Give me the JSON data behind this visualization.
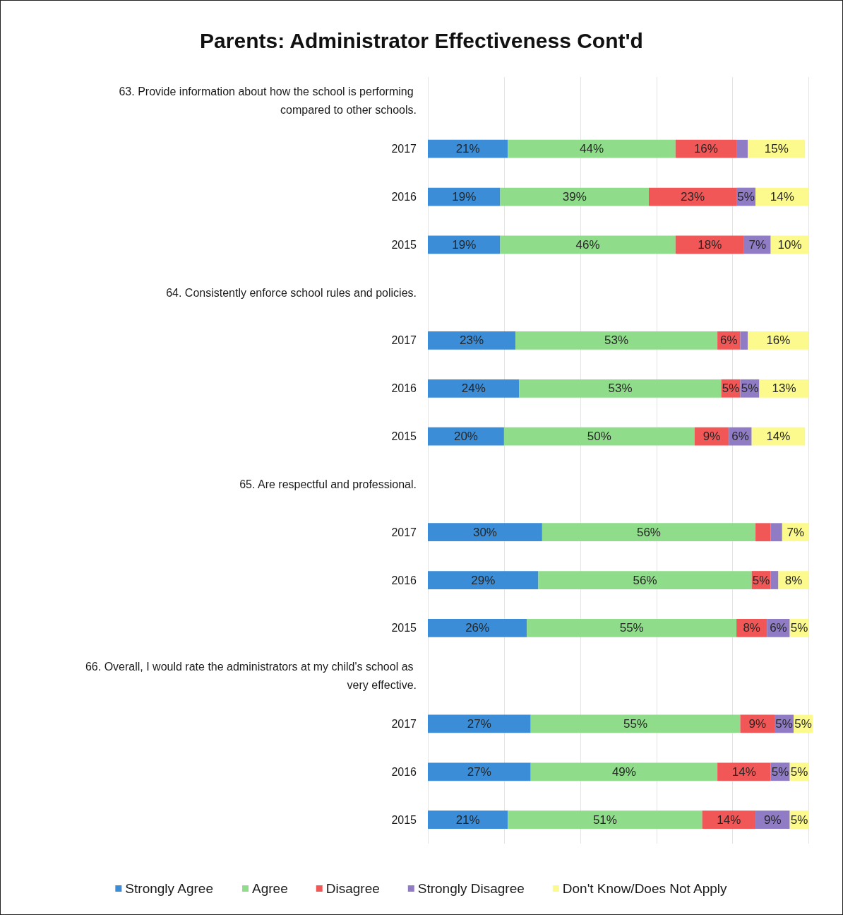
{
  "chart_data": {
    "type": "bar",
    "title": "Parents: Administrator Effectiveness Cont'd",
    "orientation": "horizontal",
    "stacked": true,
    "categories": [
      "63. Provide information about how the school is performing compared to other schools.",
      "2017",
      "2016",
      "2015",
      "64. Consistently enforce school rules and policies.",
      "2017",
      "2016",
      "2015",
      "65. Are respectful and professional.",
      "2017",
      "2016",
      "2015",
      "66. Overall, I would rate the administrators at my child's school as very effective.",
      "2017",
      "2016",
      "2015"
    ],
    "series": [
      {
        "name": "Strongly Agree",
        "color": "#3a8dd6",
        "values": [
          null,
          21,
          19,
          19,
          null,
          23,
          24,
          20,
          null,
          30,
          29,
          26,
          null,
          27,
          27,
          21
        ],
        "value_labels": [
          null,
          "21%",
          "19%",
          "19%",
          null,
          "23%",
          "24%",
          "20%",
          null,
          "30%",
          "29%",
          "26%",
          null,
          "27%",
          "27%",
          "21%"
        ]
      },
      {
        "name": "Agree",
        "color": "#8fdc8a",
        "values": [
          null,
          44,
          39,
          46,
          null,
          53,
          53,
          50,
          null,
          56,
          56,
          55,
          null,
          55,
          49,
          51
        ],
        "value_labels": [
          null,
          "44%",
          "39%",
          "46%",
          null,
          "53%",
          "53%",
          "50%",
          null,
          "56%",
          "56%",
          "55%",
          null,
          "55%",
          "49%",
          "51%"
        ]
      },
      {
        "name": "Disagree",
        "color": "#f25757",
        "values": [
          null,
          16,
          23,
          18,
          null,
          6,
          5,
          9,
          null,
          4,
          5,
          8,
          null,
          9,
          14,
          14
        ],
        "value_labels": [
          null,
          "16%",
          "23%",
          "18%",
          null,
          "6%",
          "5%",
          "9%",
          null,
          null,
          "5%",
          "8%",
          null,
          "9%",
          "14%",
          "14%"
        ]
      },
      {
        "name": "Strongly Disagree",
        "color": "#8f7cc4",
        "values": [
          null,
          3,
          5,
          7,
          null,
          2,
          5,
          6,
          null,
          3,
          2,
          6,
          null,
          5,
          5,
          9
        ],
        "value_labels": [
          null,
          null,
          "5%",
          "7%",
          null,
          null,
          "5%",
          "6%",
          null,
          null,
          null,
          "6%",
          null,
          "5%",
          "5%",
          "9%"
        ]
      },
      {
        "name": "Don't Know/Does Not Apply",
        "color": "#fcfa8c",
        "values": [
          null,
          15,
          14,
          10,
          null,
          16,
          13,
          14,
          null,
          7,
          8,
          5,
          null,
          5,
          5,
          5
        ],
        "value_labels": [
          null,
          "15%",
          "14%",
          "10%",
          null,
          "16%",
          "13%",
          "14%",
          null,
          "7%",
          "8%",
          "5%",
          null,
          "5%",
          "5%",
          "5%"
        ]
      }
    ],
    "xlim": [
      0,
      101
    ],
    "xticks": [
      {
        "value": 0,
        "label": null
      },
      {
        "value": 20,
        "label": null
      },
      {
        "value": 40,
        "label": null
      },
      {
        "value": 60,
        "label": null
      },
      {
        "value": 80,
        "label": null
      },
      {
        "value": 100,
        "label": null
      }
    ],
    "tick_labels": "y",
    "grid": "x",
    "legend": "bottom"
  }
}
